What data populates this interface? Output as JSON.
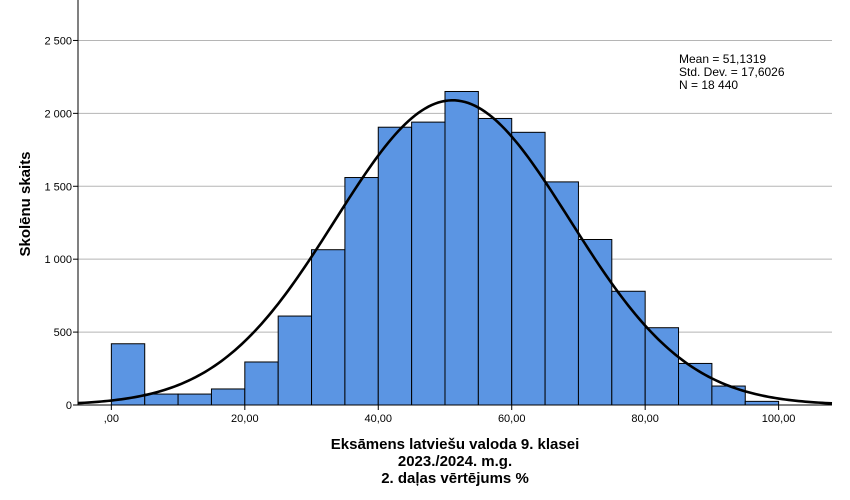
{
  "chart_data": {
    "type": "bar",
    "subtype": "histogram",
    "ylabel": "Skolēnu skaits",
    "xlabel_lines": [
      "Eksāmens latviešu valoda 9. klasei",
      "2023./2024. m.g.",
      "2. daļas vērtējums %"
    ],
    "xlim": [
      -5,
      108
    ],
    "ylim": [
      0,
      2750
    ],
    "x_ticks": [
      {
        "value": 0,
        "label": ",00"
      },
      {
        "value": 20,
        "label": "20,00"
      },
      {
        "value": 40,
        "label": "40,00"
      },
      {
        "value": 60,
        "label": "60,00"
      },
      {
        "value": 80,
        "label": "80,00"
      },
      {
        "value": 100,
        "label": "100,00"
      }
    ],
    "y_ticks": [
      {
        "value": 0,
        "label": "0"
      },
      {
        "value": 500,
        "label": "500"
      },
      {
        "value": 1000,
        "label": "1 000"
      },
      {
        "value": 1500,
        "label": "1 500"
      },
      {
        "value": 2000,
        "label": "2 000"
      },
      {
        "value": 2500,
        "label": "2 500"
      }
    ],
    "grid": "horizontal",
    "bin_width": 5,
    "bins": [
      {
        "start": 0,
        "end": 5,
        "count": 420
      },
      {
        "start": 5,
        "end": 10,
        "count": 75
      },
      {
        "start": 10,
        "end": 15,
        "count": 75
      },
      {
        "start": 15,
        "end": 20,
        "count": 110
      },
      {
        "start": 20,
        "end": 25,
        "count": 295
      },
      {
        "start": 25,
        "end": 30,
        "count": 610
      },
      {
        "start": 30,
        "end": 35,
        "count": 1065
      },
      {
        "start": 35,
        "end": 40,
        "count": 1560
      },
      {
        "start": 40,
        "end": 45,
        "count": 1905
      },
      {
        "start": 45,
        "end": 50,
        "count": 1940
      },
      {
        "start": 50,
        "end": 55,
        "count": 2150
      },
      {
        "start": 55,
        "end": 60,
        "count": 1965
      },
      {
        "start": 60,
        "end": 65,
        "count": 1870
      },
      {
        "start": 65,
        "end": 70,
        "count": 1530
      },
      {
        "start": 70,
        "end": 75,
        "count": 1135
      },
      {
        "start": 75,
        "end": 80,
        "count": 780
      },
      {
        "start": 80,
        "end": 85,
        "count": 530
      },
      {
        "start": 85,
        "end": 90,
        "count": 285
      },
      {
        "start": 90,
        "end": 95,
        "count": 130
      },
      {
        "start": 95,
        "end": 100,
        "count": 25
      }
    ],
    "normal_curve": {
      "mean": 51.1319,
      "std_dev": 17.6026,
      "n": 18440
    },
    "stats_lines": [
      "Mean = 51,1319",
      "Std. Dev. = 17,6026",
      "N = 18 440"
    ],
    "stats_position": "top-right",
    "colors": {
      "bar_fill": "#5b95e3",
      "bar_stroke": "#000000",
      "curve": "#000000",
      "grid": "#b5b5b5"
    }
  }
}
